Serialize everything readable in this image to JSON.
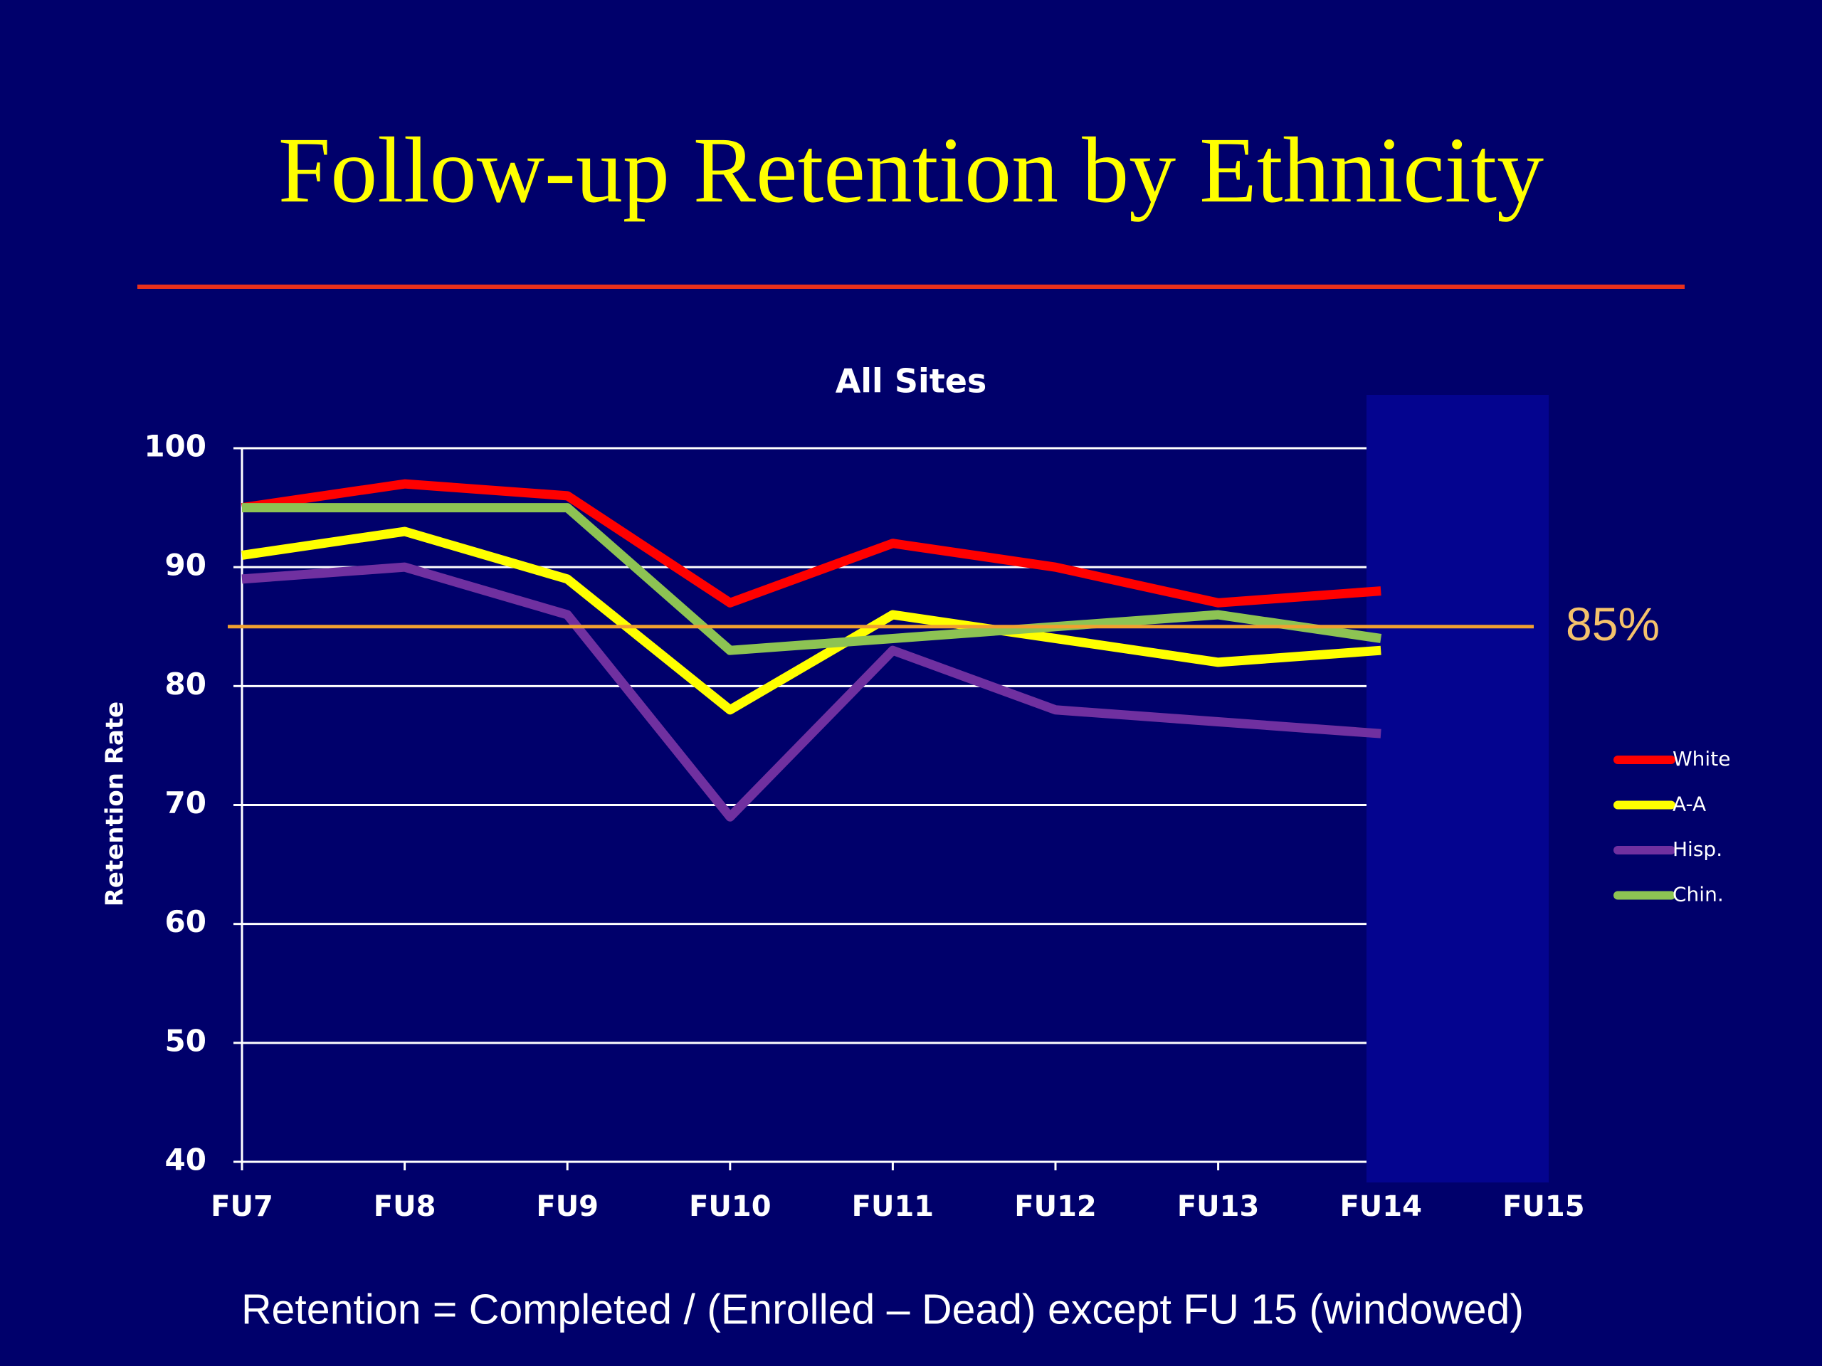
{
  "chart_data": {
    "type": "line",
    "title": "Follow-up Retention by Ethnicity",
    "subtitle": "All Sites",
    "y_label": "Retention Rate",
    "footnote": "Retention = Completed / (Enrolled – Dead) except FU 15 (windowed)",
    "categories": [
      "FU7",
      "FU8",
      "FU9",
      "FU10",
      "FU11",
      "FU12",
      "FU13",
      "FU14",
      "FU15"
    ],
    "series": [
      {
        "name": "White",
        "color": "#ff0000",
        "values": [
          95,
          97,
          96,
          87,
          92,
          90,
          87,
          88,
          null
        ]
      },
      {
        "name": "A-A",
        "color": "#ffff00",
        "values": [
          91,
          93,
          89,
          78,
          86,
          84,
          82,
          83,
          null
        ]
      },
      {
        "name": "Hisp.",
        "color": "#7030a0",
        "values": [
          89,
          90,
          86,
          69,
          83,
          78,
          77,
          76,
          null
        ]
      },
      {
        "name": "Chin.",
        "color": "#8dc353",
        "values": [
          95,
          95,
          95,
          83,
          84,
          85,
          86,
          84,
          null
        ]
      }
    ],
    "reference": {
      "value": 85,
      "label": "85%",
      "color": "#f0a030"
    },
    "ylim": [
      40,
      100
    ],
    "yticks": [
      40,
      50,
      60,
      70,
      80,
      90,
      100
    ],
    "grid": true,
    "legend": "right"
  }
}
